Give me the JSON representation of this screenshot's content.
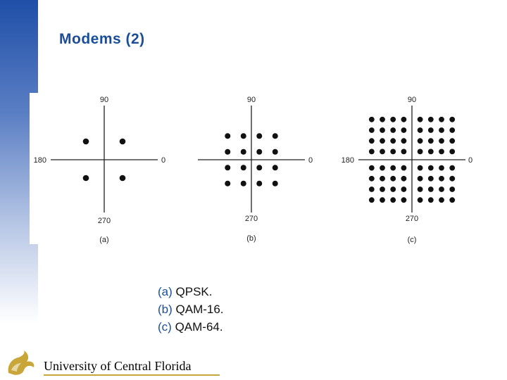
{
  "slide": {
    "title": "Modems (2)"
  },
  "axis_labels": {
    "top": "90",
    "left": "180",
    "right": "0",
    "bottom": "270"
  },
  "diagrams": [
    {
      "label": "(a)",
      "scheme": "QPSK",
      "grid": 2
    },
    {
      "label": "(b)",
      "scheme": "QAM-16",
      "grid": 4
    },
    {
      "label": "(c)",
      "scheme": "QAM-64",
      "grid": 8
    }
  ],
  "caption": [
    {
      "label": "(a)",
      "text": "QPSK."
    },
    {
      "label": "(b)",
      "text": "QAM-16."
    },
    {
      "label": "(c)",
      "text": "QAM-64."
    }
  ],
  "footer": {
    "institution": "University of Central Florida",
    "logo": "pegasus-logo-icon"
  },
  "colors": {
    "accent": "#1a4e9a",
    "gold": "#c9a63a",
    "dot": "#111111"
  }
}
